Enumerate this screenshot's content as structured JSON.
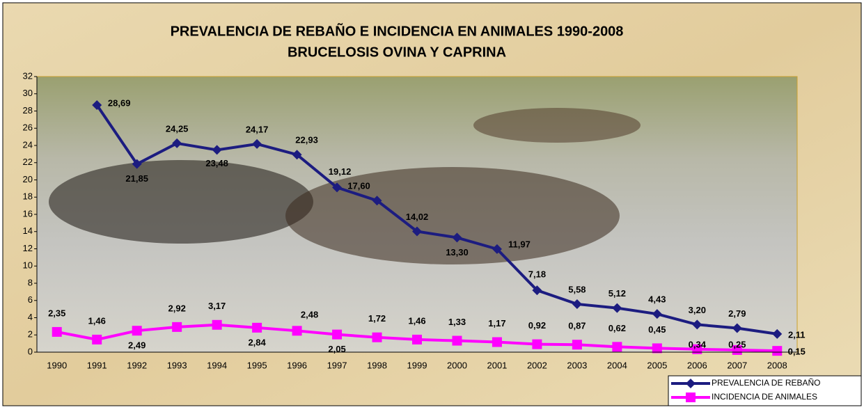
{
  "chart_data": {
    "type": "line",
    "title": "PREVALENCIA DE REBAÑO E INCIDENCIA EN ANIMALES 1990-2008",
    "subtitle": "BRUCELOSIS OVINA Y CAPRINA",
    "categories": [
      "1990",
      "1991",
      "1992",
      "1993",
      "1994",
      "1995",
      "1996",
      "1997",
      "1998",
      "1999",
      "2000",
      "2001",
      "2002",
      "2003",
      "2004",
      "2005",
      "2006",
      "2007",
      "2008"
    ],
    "series": [
      {
        "name": "PREVALENCIA DE REBAÑO",
        "color": "#1c1c80",
        "marker": "diamond",
        "values": [
          null,
          28.69,
          21.85,
          24.25,
          23.48,
          24.17,
          22.93,
          19.12,
          17.6,
          14.02,
          13.3,
          11.97,
          7.18,
          5.58,
          5.12,
          4.43,
          3.2,
          2.79,
          2.11
        ],
        "value_labels": [
          null,
          "28,69",
          "21,85",
          "24,25",
          "23,48",
          "24,17",
          "22,93",
          "19,12",
          "17,60",
          "14,02",
          "13,30",
          "11,97",
          "7,18",
          "5,58",
          "5,12",
          "4,43",
          "3,20",
          "2,79",
          "2,11"
        ]
      },
      {
        "name": "INCIDENCIA DE ANIMALES",
        "color": "#ff00ff",
        "marker": "square",
        "values": [
          2.35,
          1.46,
          2.49,
          2.92,
          3.17,
          2.84,
          2.48,
          2.05,
          1.72,
          1.46,
          1.33,
          1.17,
          0.92,
          0.87,
          0.62,
          0.45,
          0.34,
          0.25,
          0.15
        ],
        "value_labels": [
          "2,35",
          "1,46",
          "2,49",
          "2,92",
          "3,17",
          "2,84",
          "2,48",
          "2,05",
          "1,72",
          "1,46",
          "1,33",
          "1,17",
          "0,92",
          "0,87",
          "0,62",
          "0,45",
          "0,34",
          "0,25",
          "0,15"
        ]
      }
    ],
    "ylim": [
      0,
      32
    ],
    "yticks": [
      0,
      2,
      4,
      6,
      8,
      10,
      12,
      14,
      16,
      18,
      20,
      22,
      24,
      26,
      28,
      30,
      32
    ],
    "legend": "bottom-right"
  }
}
